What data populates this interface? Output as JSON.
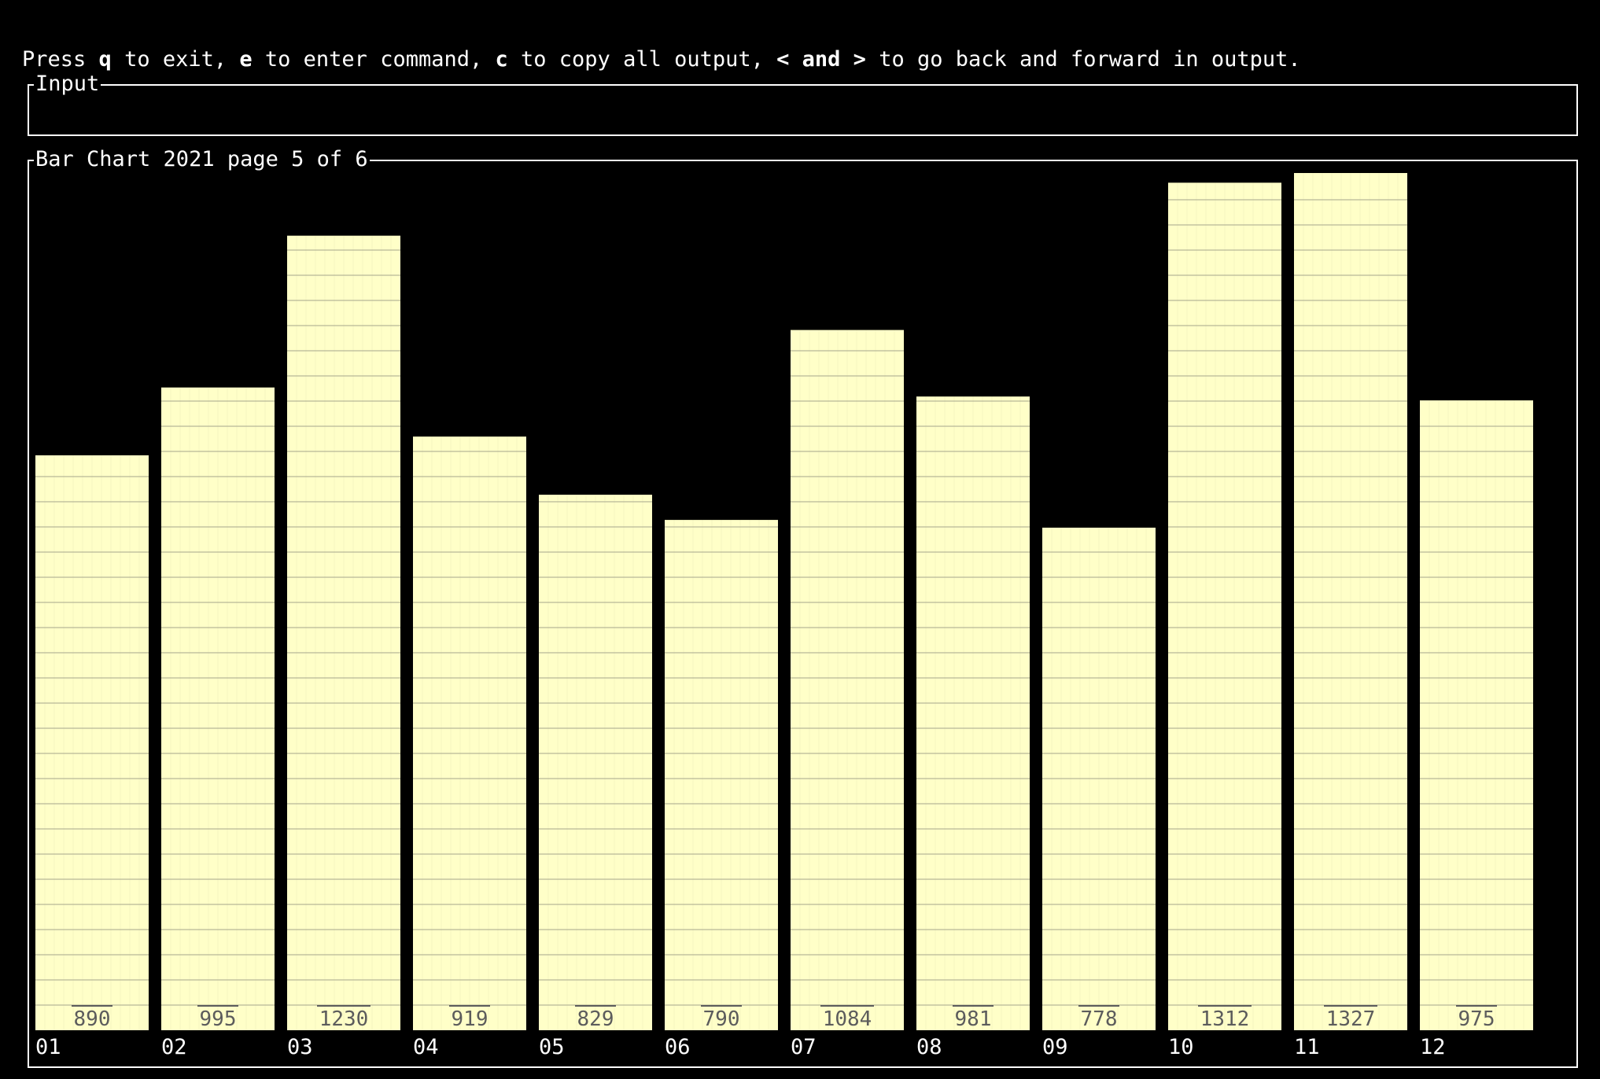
{
  "help": {
    "p1": "Press ",
    "k1": "q",
    "p2": " to exit, ",
    "k2": "e",
    "p3": " to enter command, ",
    "k3": "c",
    "p4": " to copy all output, ",
    "k4": "< and >",
    "p5": " to go back and forward in output."
  },
  "input": {
    "title": "Input",
    "value": ""
  },
  "chart": {
    "title": "Bar Chart 2021 page 5 of 6"
  },
  "colors": {
    "background": "#000000",
    "bar_fill": "#ffffc8",
    "bar_grid": "#a6a68c",
    "value_label": "#5c5c5c",
    "text": "#ffffff"
  },
  "chart_data": {
    "type": "bar",
    "title": "Bar Chart 2021 page 5 of 6",
    "categories": [
      "01",
      "02",
      "03",
      "04",
      "05",
      "06",
      "07",
      "08",
      "09",
      "10",
      "11",
      "12"
    ],
    "values": [
      890,
      995,
      1230,
      919,
      829,
      790,
      1084,
      981,
      778,
      1312,
      1327,
      975
    ],
    "xlabel": "",
    "ylabel": "",
    "ylim": [
      0,
      1327
    ],
    "grid": true,
    "legend": "none"
  }
}
